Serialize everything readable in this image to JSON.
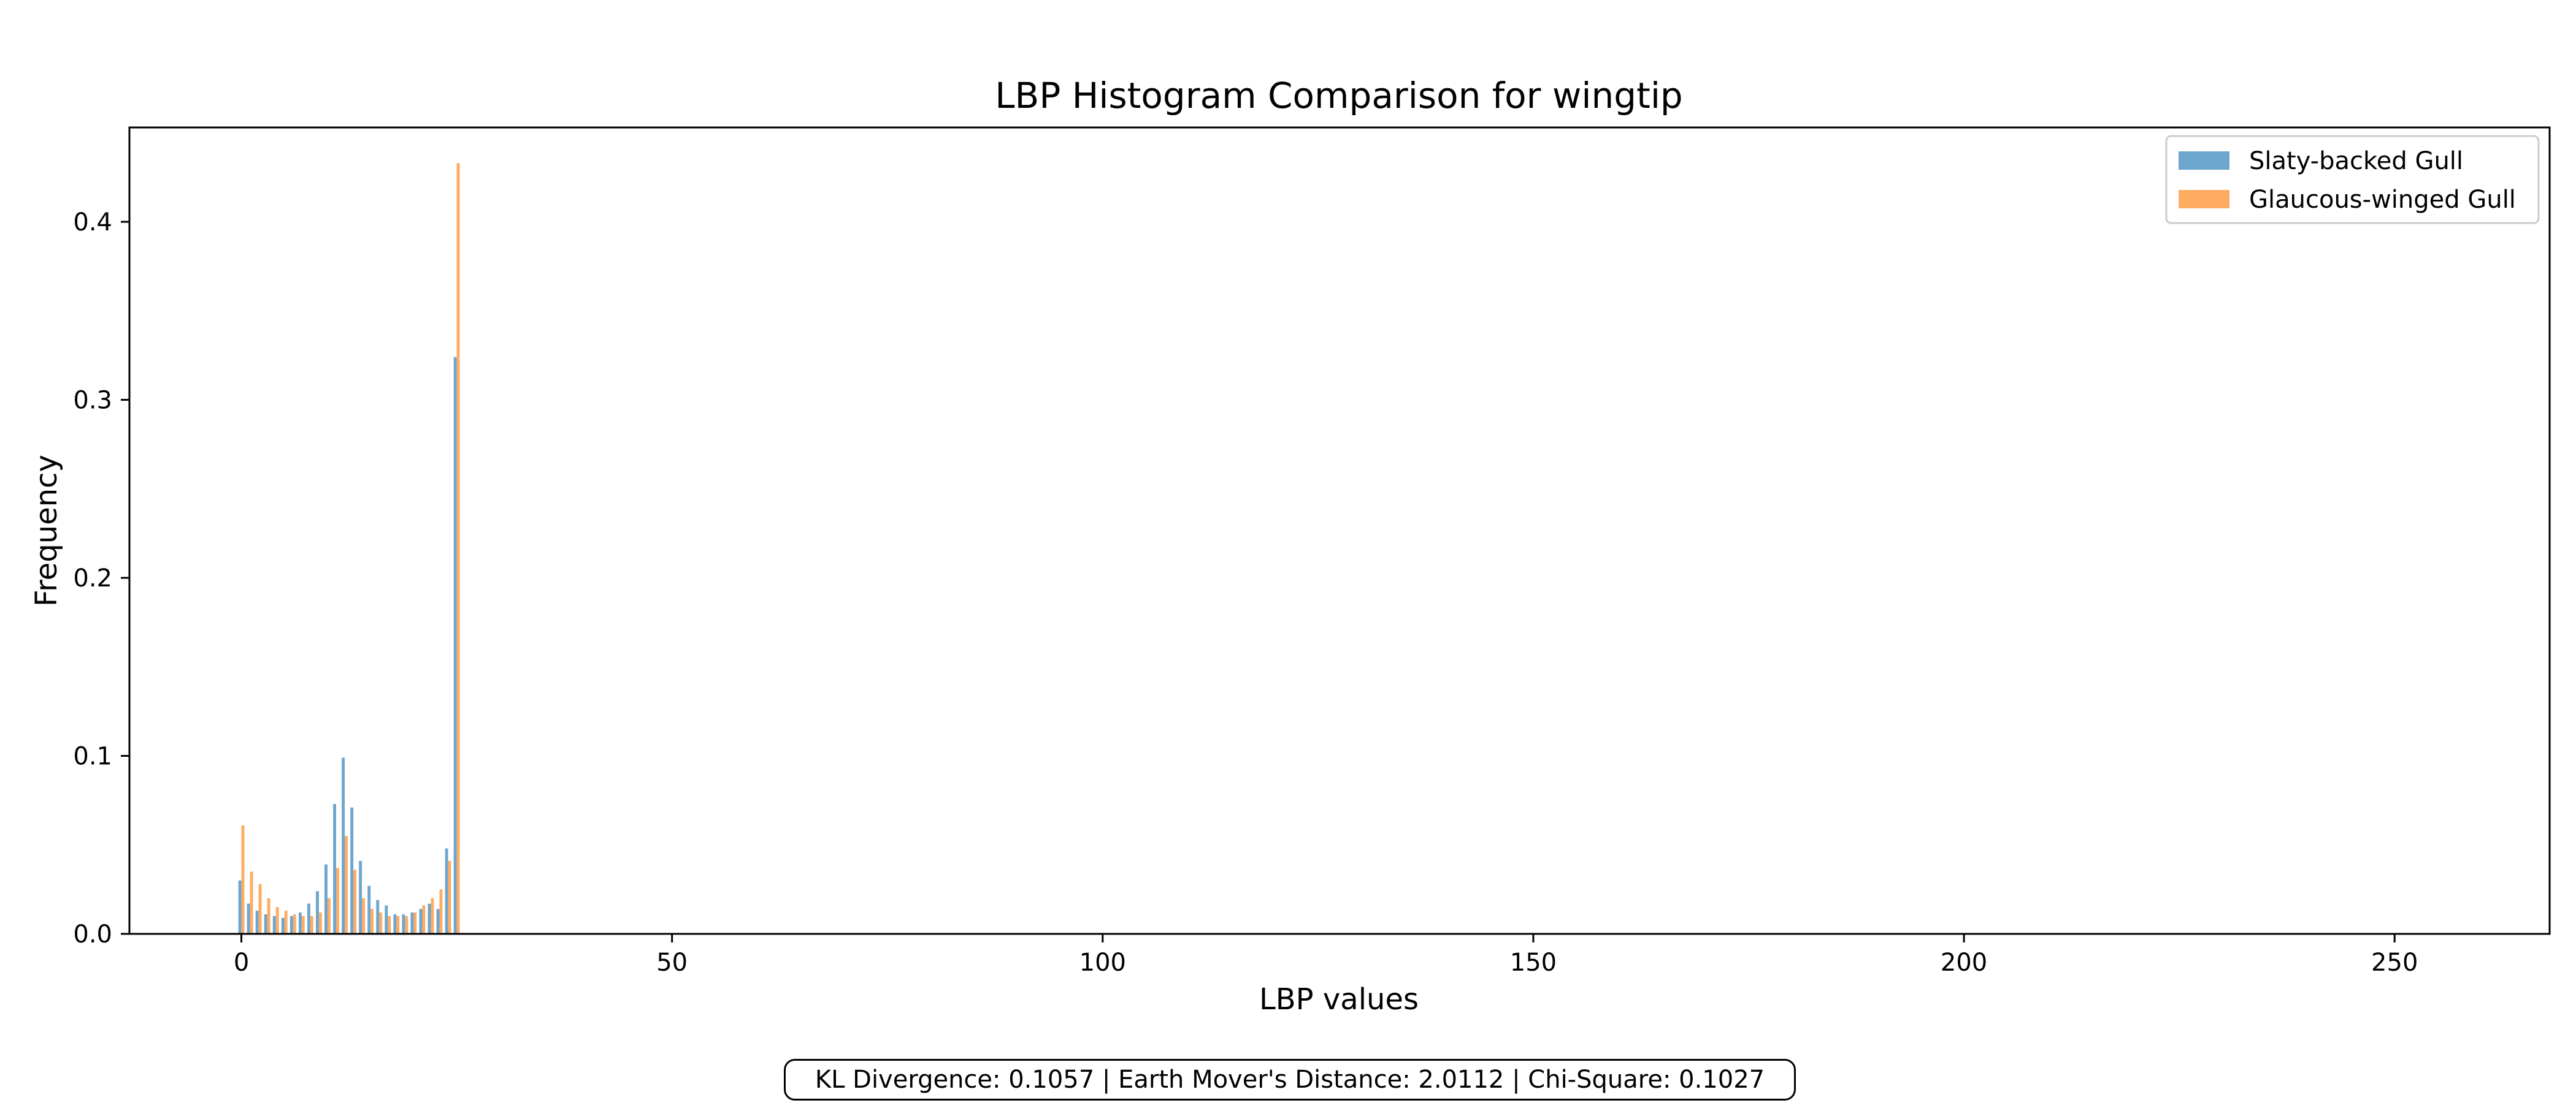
{
  "chart_data": {
    "type": "bar",
    "title": "LBP Histogram Comparison for wingtip",
    "xlabel": "LBP values",
    "ylabel": "Frequency",
    "xlim": [
      -13,
      268
    ],
    "ylim": [
      0,
      0.453
    ],
    "xticks": [
      0,
      50,
      100,
      150,
      200,
      250
    ],
    "xtick_labels": [
      "0",
      "50",
      "100",
      "150",
      "200",
      "250"
    ],
    "yticks": [
      0.0,
      0.1,
      0.2,
      0.3,
      0.4
    ],
    "ytick_labels": [
      "0.0",
      "0.1",
      "0.2",
      "0.3",
      "0.4"
    ],
    "grid": false,
    "legend_position": "top-right",
    "x": [
      0,
      1,
      2,
      3,
      4,
      5,
      6,
      7,
      8,
      9,
      10,
      11,
      12,
      13,
      14,
      15,
      16,
      17,
      18,
      19,
      20,
      21,
      22,
      23,
      24,
      25
    ],
    "series": [
      {
        "name": "Slaty-backed Gull",
        "color": "#1f77b4",
        "values": [
          0.03,
          0.017,
          0.013,
          0.011,
          0.01,
          0.009,
          0.01,
          0.012,
          0.017,
          0.024,
          0.039,
          0.073,
          0.099,
          0.071,
          0.041,
          0.027,
          0.019,
          0.016,
          0.011,
          0.011,
          0.012,
          0.014,
          0.017,
          0.014,
          0.048,
          0.324
        ]
      },
      {
        "name": "Glaucous-winged Gull",
        "color": "#ff7f0e",
        "values": [
          0.061,
          0.035,
          0.028,
          0.02,
          0.015,
          0.013,
          0.011,
          0.01,
          0.01,
          0.012,
          0.02,
          0.037,
          0.055,
          0.036,
          0.02,
          0.014,
          0.012,
          0.01,
          0.01,
          0.01,
          0.012,
          0.016,
          0.02,
          0.025,
          0.041,
          0.433
        ]
      }
    ]
  },
  "metrics_text": "KL Divergence: 0.1057 | Earth Mover's Distance: 2.0112 | Chi-Square: 0.1027"
}
